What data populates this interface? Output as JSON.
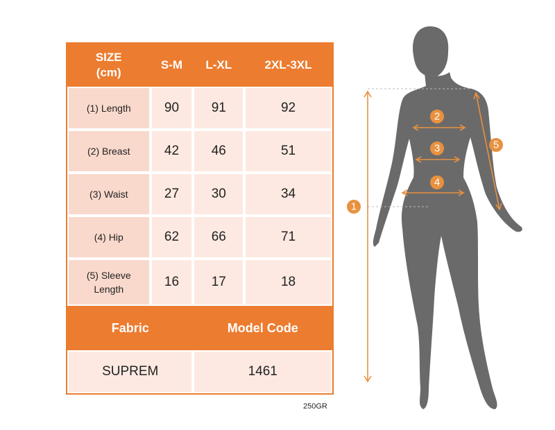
{
  "table": {
    "header": [
      "SIZE\n(cm)",
      "S-M",
      "L-XL",
      "2XL-3XL"
    ],
    "rows": [
      [
        "(1) Length",
        90,
        91,
        92
      ],
      [
        "(2) Breast",
        42,
        46,
        51
      ],
      [
        "(3) Waist",
        27,
        30,
        34
      ],
      [
        "(4) Hip",
        62,
        66,
        71
      ],
      [
        "(5) Sleeve\nLength",
        16,
        17,
        18
      ]
    ],
    "footer_header": [
      "Fabric",
      "Model Code"
    ],
    "footer_values": [
      "SUPREM",
      1461
    ]
  },
  "weight": "250GR",
  "figure": {
    "markers": [
      "1",
      "2",
      "3",
      "4",
      "5"
    ]
  }
}
